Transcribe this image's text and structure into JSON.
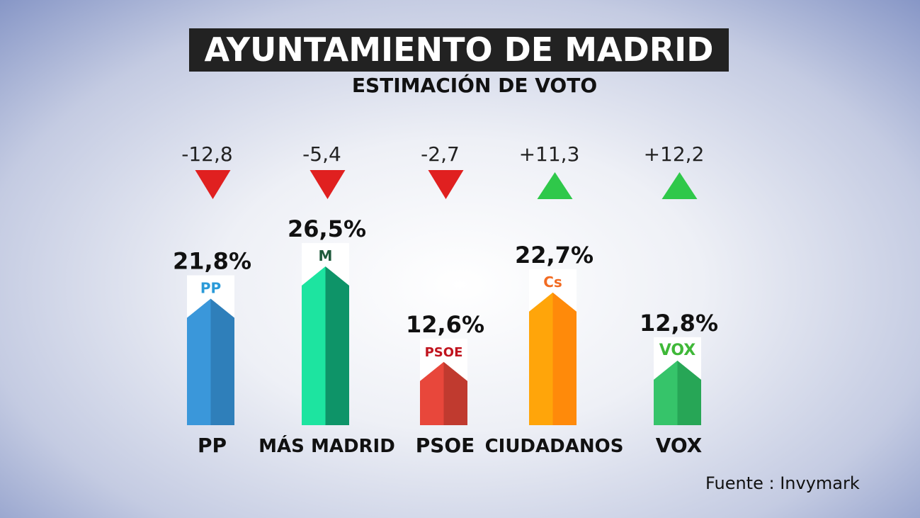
{
  "title": "AYUNTAMIENTO DE MADRID",
  "subtitle": "ESTIMACIÓN DE VOTO",
  "source": "Fuente : Invymark",
  "chart_data": {
    "type": "bar",
    "title": "AYUNTAMIENTO DE MADRID",
    "subtitle": "ESTIMACIÓN DE VOTO",
    "categories": [
      "PP",
      "MÁS MADRID",
      "PSOE",
      "CIUDADANOS",
      "VOX"
    ],
    "values": [
      21.8,
      26.5,
      12.6,
      22.7,
      12.8
    ],
    "value_labels": [
      "21,8%",
      "26,5%",
      "12,6%",
      "22,7%",
      "12,8%"
    ],
    "changes": [
      -12.8,
      -5.4,
      -2.7,
      11.3,
      12.2
    ],
    "change_labels": [
      "-12,8",
      "-5,4",
      "-2,7",
      "+11,3",
      "+12,2"
    ],
    "logos": [
      "PP",
      "M",
      "PSOE",
      "Cs",
      "VOX"
    ],
    "colors": [
      [
        "#3a97da",
        "#2f7fba"
      ],
      [
        "#1de4a0",
        "#0e9468"
      ],
      [
        "#e8473b",
        "#c03a2f"
      ],
      [
        "#ffa50a",
        "#ff8a0a"
      ],
      [
        "#36c46a",
        "#27a656"
      ]
    ],
    "logo_colors": [
      "#2a9ad8",
      "#1f5a3c",
      "#c0141e",
      "#f26b22",
      "#3fb838"
    ],
    "up_color": "#2fc84a",
    "down_color": "#e02020",
    "grid": false
  }
}
